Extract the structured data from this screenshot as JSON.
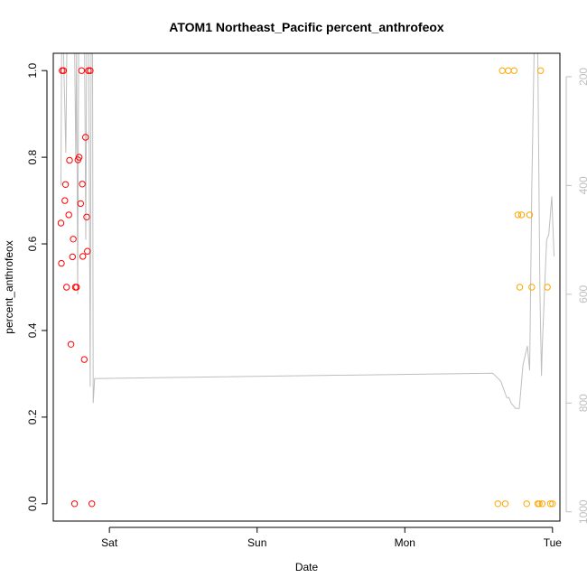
{
  "chart_data": {
    "type": "scatter",
    "title": "ATOM1 Northeast_Pacific percent_anthrofeox",
    "xlabel": "Date",
    "ylabel": "percent_anthrofeox",
    "x_axis": {
      "unit": "days",
      "range": [
        0.62,
        4.05
      ],
      "ticks": [
        {
          "value": 1,
          "label": "Sat"
        },
        {
          "value": 2,
          "label": "Sun"
        },
        {
          "value": 3,
          "label": "Mon"
        },
        {
          "value": 4,
          "label": "Tue"
        }
      ]
    },
    "y_axis": {
      "range": [
        -0.04,
        1.04
      ],
      "ticks": [
        0.0,
        0.2,
        0.4,
        0.6,
        0.8,
        1.0
      ],
      "tick_labels": [
        "0.0",
        "0.2",
        "0.4",
        "0.6",
        "0.8",
        "1.0"
      ]
    },
    "y2_axis": {
      "quantity": "pressure",
      "reversed": true,
      "range": [
        1017,
        157
      ],
      "ticks": [
        200,
        400,
        600,
        800,
        1000
      ],
      "tick_labels": [
        "200",
        "400",
        "600",
        "800",
        "1000"
      ],
      "color": "#bebebe"
    },
    "series": [
      {
        "color": "#ff0000",
        "marker": "open-circle",
        "points": [
          [
            0.672,
            0.648
          ],
          [
            0.675,
            0.555
          ],
          [
            0.68,
            1.0
          ],
          [
            0.69,
            1.0
          ],
          [
            0.698,
            0.7
          ],
          [
            0.703,
            0.737
          ],
          [
            0.71,
            0.5
          ],
          [
            0.725,
            0.667
          ],
          [
            0.73,
            0.793
          ],
          [
            0.74,
            0.368
          ],
          [
            0.75,
            0.57
          ],
          [
            0.755,
            0.611
          ],
          [
            0.764,
            0.0
          ],
          [
            0.77,
            0.5
          ],
          [
            0.778,
            0.5
          ],
          [
            0.787,
            0.794
          ],
          [
            0.795,
            0.8
          ],
          [
            0.805,
            0.693
          ],
          [
            0.812,
            1.0
          ],
          [
            0.816,
            0.738
          ],
          [
            0.82,
            0.571
          ],
          [
            0.83,
            0.333
          ],
          [
            0.838,
            0.846
          ],
          [
            0.846,
            0.662
          ],
          [
            0.851,
            0.583
          ],
          [
            0.858,
            1.0
          ],
          [
            0.87,
            1.0
          ],
          [
            0.881,
            0.0
          ]
        ]
      },
      {
        "color": "#ffa500",
        "marker": "open-circle",
        "points": [
          [
            3.63,
            0.0
          ],
          [
            3.66,
            1.0
          ],
          [
            3.68,
            0.0
          ],
          [
            3.7,
            1.0
          ],
          [
            3.74,
            1.0
          ],
          [
            3.765,
            0.667
          ],
          [
            3.778,
            0.5
          ],
          [
            3.79,
            0.667
          ],
          [
            3.825,
            0.0
          ],
          [
            3.845,
            0.667
          ],
          [
            3.86,
            0.5
          ],
          [
            3.9,
            0.0
          ],
          [
            3.91,
            0.0
          ],
          [
            3.92,
            1.0
          ],
          [
            3.93,
            0.0
          ],
          [
            3.965,
            0.5
          ],
          [
            3.985,
            0.0
          ],
          [
            4.0,
            0.0
          ]
        ]
      }
    ],
    "pressure_line": {
      "color": "#bebebe",
      "axis": "y2",
      "points": [
        [
          0.672,
          400
        ],
        [
          0.676,
          157
        ],
        [
          0.69,
          157
        ],
        [
          0.705,
          340
        ],
        [
          0.712,
          157
        ],
        [
          0.718,
          157
        ],
        [
          0.735,
          157
        ],
        [
          0.745,
          157
        ],
        [
          0.765,
          157
        ],
        [
          0.772,
          350
        ],
        [
          0.778,
          157
        ],
        [
          0.785,
          600
        ],
        [
          0.792,
          157
        ],
        [
          0.8,
          157
        ],
        [
          0.808,
          157
        ],
        [
          0.812,
          157
        ],
        [
          0.82,
          157
        ],
        [
          0.832,
          157
        ],
        [
          0.84,
          500
        ],
        [
          0.846,
          157
        ],
        [
          0.852,
          157
        ],
        [
          0.86,
          157
        ],
        [
          0.87,
          770
        ],
        [
          0.876,
          157
        ],
        [
          0.882,
          157
        ],
        [
          0.886,
          160
        ],
        [
          0.89,
          800
        ],
        [
          0.9,
          755
        ],
        [
          3.595,
          745
        ],
        [
          3.65,
          760
        ],
        [
          3.69,
          790
        ],
        [
          3.705,
          790
        ],
        [
          3.72,
          800
        ],
        [
          3.75,
          810
        ],
        [
          3.775,
          810
        ],
        [
          3.8,
          730
        ],
        [
          3.83,
          695
        ],
        [
          3.845,
          740
        ],
        [
          3.86,
          400
        ],
        [
          3.875,
          157
        ],
        [
          3.9,
          157
        ],
        [
          3.915,
          600
        ],
        [
          3.925,
          750
        ],
        [
          3.93,
          700
        ],
        [
          3.945,
          600
        ],
        [
          3.96,
          500
        ],
        [
          3.975,
          490
        ],
        [
          3.995,
          420
        ],
        [
          4.01,
          530
        ]
      ]
    }
  }
}
